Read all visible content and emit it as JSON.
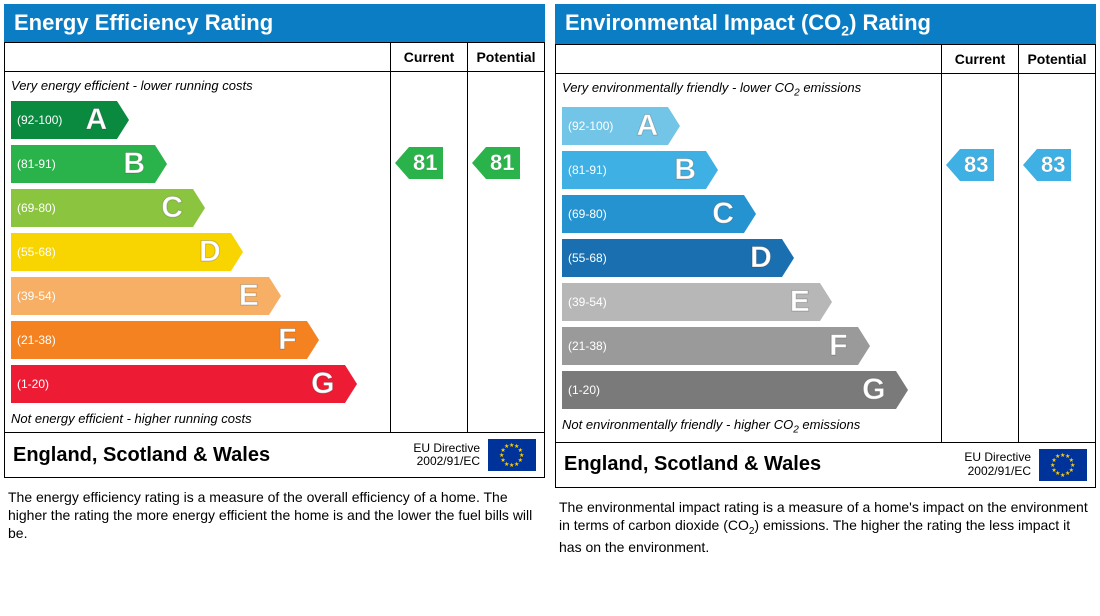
{
  "panels": [
    {
      "title": "Energy Efficiency Rating",
      "titleHasCO2": false,
      "headerCurrent": "Current",
      "headerPotential": "Potential",
      "topCaption": "Very energy efficient - lower running costs",
      "topCaptionHasCO2": false,
      "bottomCaption": "Not energy efficient - higher running costs",
      "bottomCaptionHasCO2": false,
      "bands": [
        {
          "label": "A",
          "range": "(92-100)",
          "color": "#0a8a3f",
          "widthPct": 28
        },
        {
          "label": "B",
          "range": "(81-91)",
          "color": "#2bb34b",
          "widthPct": 38
        },
        {
          "label": "C",
          "range": "(69-80)",
          "color": "#8bc540",
          "widthPct": 48
        },
        {
          "label": "D",
          "range": "(55-68)",
          "color": "#f8d400",
          "widthPct": 58
        },
        {
          "label": "E",
          "range": "(39-54)",
          "color": "#f6af64",
          "widthPct": 68
        },
        {
          "label": "F",
          "range": "(21-38)",
          "color": "#f58220",
          "widthPct": 78
        },
        {
          "label": "G",
          "range": "(1-20)",
          "color": "#ed1b34",
          "widthPct": 88
        }
      ],
      "pointerColor": "#2bb34b",
      "currentValue": "81",
      "currentBandIndex": 1,
      "potentialValue": "81",
      "potentialBandIndex": 1,
      "region": "England, Scotland & Wales",
      "directive1": "EU Directive",
      "directive2": "2002/91/EC",
      "description": "The energy efficiency rating is a measure of the overall efficiency of a home. The higher the rating the more energy efficient the home is and the lower the fuel bills will be.",
      "descriptionHasCO2": false
    },
    {
      "title": "Environmental Impact (CO2) Rating",
      "titleHasCO2": true,
      "headerCurrent": "Current",
      "headerPotential": "Potential",
      "topCaption": "Very environmentally friendly - lower CO2 emissions",
      "topCaptionHasCO2": true,
      "bottomCaption": "Not environmentally friendly - higher CO2 emissions",
      "bottomCaptionHasCO2": true,
      "bands": [
        {
          "label": "A",
          "range": "(92-100)",
          "color": "#73c5e8",
          "widthPct": 28
        },
        {
          "label": "B",
          "range": "(81-91)",
          "color": "#3eb0e4",
          "widthPct": 38
        },
        {
          "label": "C",
          "range": "(69-80)",
          "color": "#2693d1",
          "widthPct": 48
        },
        {
          "label": "D",
          "range": "(55-68)",
          "color": "#1a6fb0",
          "widthPct": 58
        },
        {
          "label": "E",
          "range": "(39-54)",
          "color": "#b7b7b7",
          "widthPct": 68
        },
        {
          "label": "F",
          "range": "(21-38)",
          "color": "#9a9a9a",
          "widthPct": 78
        },
        {
          "label": "G",
          "range": "(1-20)",
          "color": "#7a7a7a",
          "widthPct": 88
        }
      ],
      "pointerColor": "#3eb0e4",
      "currentValue": "83",
      "currentBandIndex": 1,
      "potentialValue": "83",
      "potentialBandIndex": 1,
      "region": "England, Scotland & Wales",
      "directive1": "EU Directive",
      "directive2": "2002/91/EC",
      "description": "The environmental impact rating is a measure of a home's impact on the environment in terms of carbon dioxide (CO2) emissions. The higher the rating the less impact it has on the environment.",
      "descriptionHasCO2": true
    }
  ]
}
